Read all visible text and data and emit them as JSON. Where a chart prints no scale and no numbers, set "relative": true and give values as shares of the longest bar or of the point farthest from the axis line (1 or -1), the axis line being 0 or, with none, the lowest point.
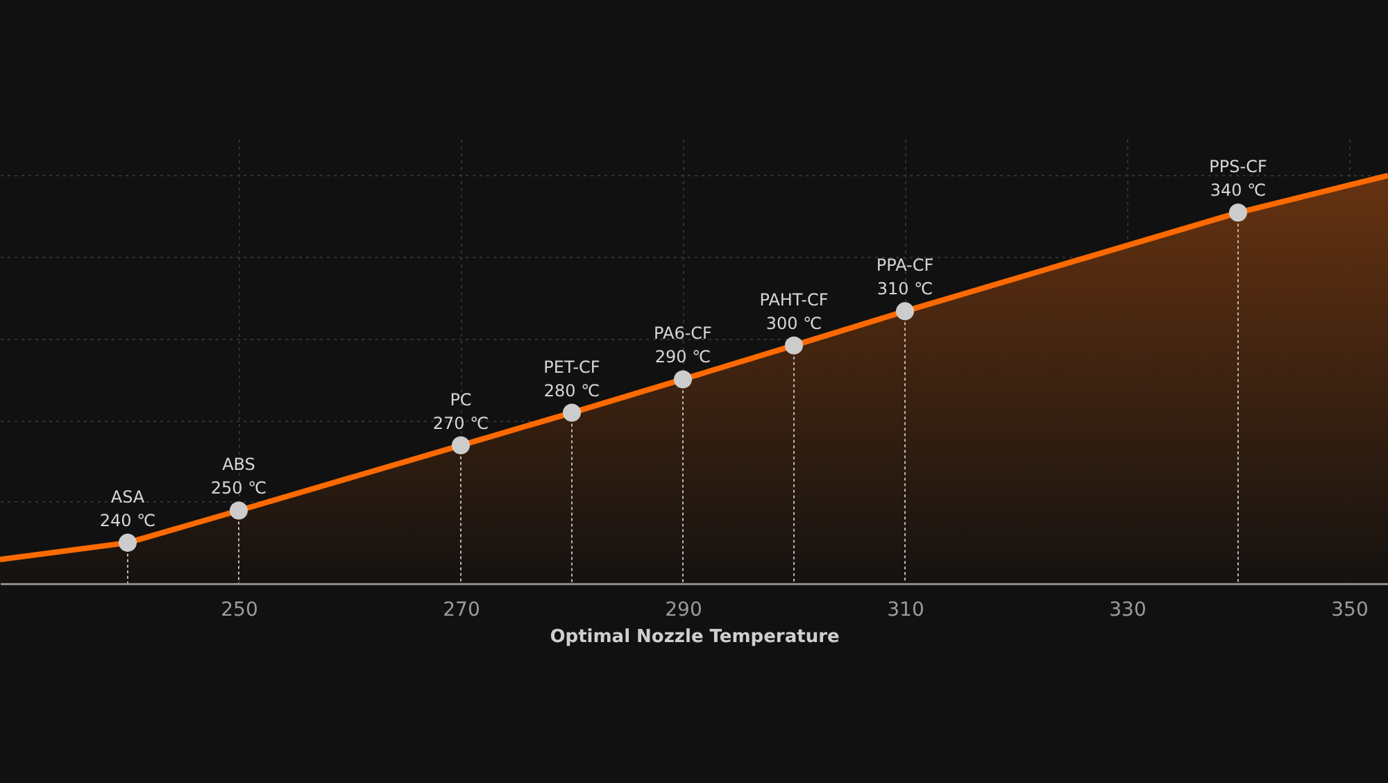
{
  "chart_data": {
    "type": "area",
    "xlabel": "Optimal Nozzle Temperature",
    "relative": true,
    "xlim": [
      228.5,
      353.5
    ],
    "xticks": [
      250,
      270,
      290,
      310,
      330,
      350
    ],
    "grid": true,
    "series": [
      {
        "color": "#ff6a00",
        "x": [
          228.5,
          240,
          250,
          270,
          280,
          290,
          300,
          310,
          340,
          353.5
        ],
        "values": [
          0.058,
          0.099,
          0.178,
          0.338,
          0.418,
          0.5,
          0.583,
          0.667,
          0.909,
          1.0
        ]
      },
      {
        "type": "lollipop",
        "marker": "circle",
        "line_style": "dotted",
        "color": "#cccccc",
        "x": [
          240,
          250,
          270,
          280,
          290,
          300,
          310,
          340
        ],
        "values": [
          0.099,
          0.178,
          0.338,
          0.418,
          0.5,
          0.583,
          0.667,
          0.909
        ]
      }
    ],
    "annotations": [
      {
        "text": "ASA\n240 ℃",
        "x": 240,
        "y": 0.099
      },
      {
        "text": "ABS\n250 ℃",
        "x": 250,
        "y": 0.178
      },
      {
        "text": "PC\n270 ℃",
        "x": 270,
        "y": 0.338
      },
      {
        "text": "PET-CF\n280 ℃",
        "x": 280,
        "y": 0.418
      },
      {
        "text": "PA6-CF\n290 ℃",
        "x": 290,
        "y": 0.5
      },
      {
        "text": "PAHT-CF\n300 ℃",
        "x": 300,
        "y": 0.583
      },
      {
        "text": "PPA-CF\n310 ℃",
        "x": 310,
        "y": 0.667
      },
      {
        "text": "PPS-CF\n340 ℃",
        "x": 340,
        "y": 0.909
      }
    ]
  }
}
